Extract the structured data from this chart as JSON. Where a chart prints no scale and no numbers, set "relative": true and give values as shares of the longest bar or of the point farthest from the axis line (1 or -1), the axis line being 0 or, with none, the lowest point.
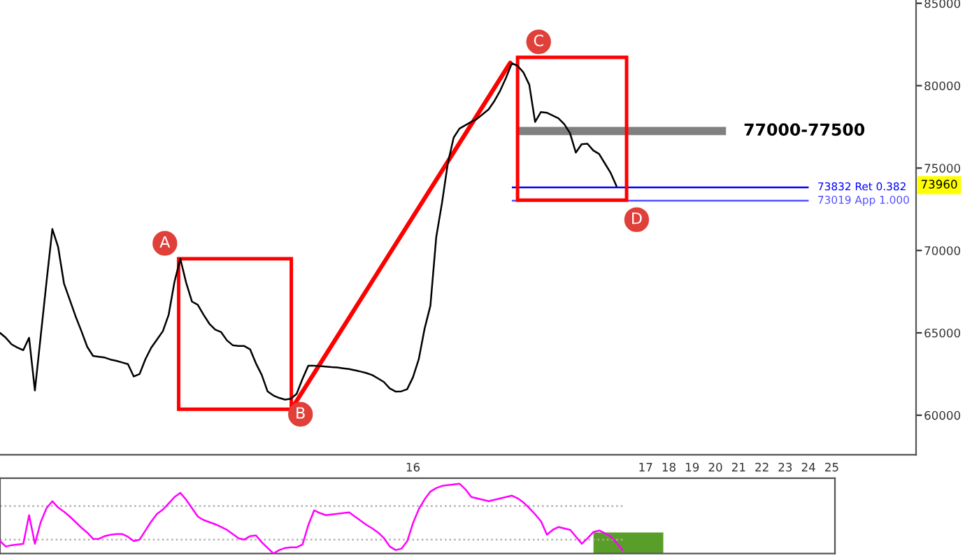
{
  "chart_data": [
    {
      "type": "line",
      "ylim": [
        57600,
        85200
      ],
      "yticks": [
        60000,
        65000,
        70000,
        75000,
        80000,
        85000
      ],
      "categories": [
        null,
        null,
        null,
        null,
        null,
        null,
        null,
        null,
        null,
        null,
        null,
        null,
        null,
        null,
        null,
        null,
        null,
        null,
        null,
        null,
        null,
        null,
        null,
        null,
        null,
        null,
        null,
        null,
        null,
        null,
        null,
        null,
        null,
        null,
        null,
        null,
        null,
        null,
        null,
        null,
        null,
        null,
        null,
        null,
        null,
        null,
        null,
        null,
        null,
        null,
        null,
        null,
        null,
        null,
        null,
        null,
        null,
        null,
        null,
        null,
        null,
        null,
        null,
        null,
        null,
        null,
        null,
        null,
        null,
        null,
        null,
        "16",
        null,
        null,
        null,
        null,
        null,
        null,
        null,
        null,
        null,
        null,
        null,
        null,
        null,
        null,
        null,
        null,
        null,
        null,
        null,
        null,
        null,
        null,
        null,
        null,
        null,
        null,
        null,
        null,
        null,
        null,
        null,
        null,
        null,
        null,
        null,
        null,
        null,
        null,
        null,
        "17",
        null,
        null,
        null,
        "18",
        null,
        null,
        null,
        "19",
        null,
        null,
        null,
        "20",
        null,
        null,
        null,
        "21",
        null,
        null,
        null,
        "22",
        null,
        null,
        null,
        "23",
        null,
        null,
        null,
        "24",
        null,
        null,
        null,
        "25",
        null,
        null,
        null,
        null,
        null,
        null,
        null,
        null,
        null,
        null,
        null,
        null,
        null,
        null
      ],
      "grid": false,
      "legend": false,
      "marker": "none",
      "series": [
        {
          "color": "#000000",
          "values": [
            65000,
            64700,
            64300,
            64100,
            63950,
            64700,
            61500,
            64800,
            68100,
            71300,
            70200,
            68000,
            67000,
            66000,
            65100,
            64150,
            63600,
            63550,
            63500,
            63380,
            63300,
            63200,
            63100,
            62350,
            62500,
            63400,
            64100,
            64600,
            65100,
            66100,
            68100,
            69500,
            68050,
            66900,
            66700,
            66100,
            65550,
            65200,
            65050,
            64550,
            64250,
            64200,
            64200,
            64000,
            63150,
            62450,
            61450,
            61200,
            61050,
            60950,
            61000,
            61300,
            62200,
            63000,
            63000,
            62980,
            62950,
            62920,
            62900,
            62850,
            62800,
            62730,
            62650,
            62560,
            62440,
            62230,
            62020,
            61630,
            61440,
            61450,
            61580,
            62300,
            63400,
            65250,
            66650,
            70800,
            72900,
            75300,
            76850,
            77400,
            77600,
            77800,
            77980,
            78270,
            78560,
            79070,
            79700,
            80480,
            81360,
            81200,
            80800,
            80060,
            77800,
            78400,
            78360,
            78190,
            78020,
            77670,
            77120,
            75940,
            76450,
            76480,
            76070,
            75860,
            75280,
            74700,
            73900,
            null,
            null,
            null,
            null,
            null,
            null,
            null,
            null,
            null,
            null,
            null,
            null,
            null,
            null,
            null,
            null,
            null,
            null,
            null,
            null,
            null,
            null,
            null,
            null,
            null,
            null,
            null,
            null,
            null,
            null,
            null,
            null,
            null,
            null,
            null,
            null,
            null,
            null,
            null,
            null,
            null,
            null,
            null,
            null,
            null,
            null,
            null,
            null,
            null,
            null,
            null
          ]
        }
      ],
      "bands": [
        {
          "axis": "y",
          "from": 77000,
          "to": 77500,
          "label": "77000-77500",
          "color": "#808080"
        }
      ],
      "ref_lines": [
        {
          "axis": "y",
          "value": 73832,
          "label": "73832 Ret 0.382",
          "color": "#0000ff"
        },
        {
          "axis": "y",
          "value": 73019,
          "label": "73019 App 1.000",
          "color": "#5050ff"
        }
      ],
      "annotations": [
        "A",
        "B",
        "C",
        "D",
        {
          "text": "73960",
          "y": 73960
        }
      ]
    },
    {
      "type": "line",
      "relative": true,
      "legend": false,
      "grid": false,
      "marker": "none",
      "categories": [
        null,
        null,
        null,
        null,
        null,
        null,
        null,
        null,
        null,
        null,
        null,
        null,
        null,
        null,
        null,
        null,
        null,
        null,
        null,
        null,
        null,
        null,
        null,
        null,
        null,
        null,
        null,
        null,
        null,
        null,
        null,
        null,
        null,
        null,
        null,
        null,
        null,
        null,
        null,
        null,
        null,
        null,
        null,
        null,
        null,
        null,
        null,
        null,
        null,
        null,
        null,
        null,
        null,
        null,
        null,
        null,
        null,
        null,
        null,
        null,
        null,
        null,
        null,
        null,
        null,
        null,
        null,
        null,
        null,
        null,
        null,
        null,
        null,
        null,
        null,
        null,
        null,
        null,
        null,
        null,
        null,
        null,
        null,
        null,
        null,
        null,
        null,
        null,
        null,
        null,
        null,
        null,
        null,
        null,
        null,
        null,
        null,
        null,
        null,
        null,
        null,
        null,
        null,
        null,
        null,
        null,
        null,
        null,
        null,
        null,
        null,
        null,
        null,
        null,
        null,
        null,
        null,
        null,
        null,
        null,
        null,
        null,
        null,
        null,
        null,
        null,
        null,
        null,
        null,
        null,
        null,
        null,
        null,
        null,
        null,
        null,
        null,
        null,
        null,
        null,
        null,
        null,
        null,
        null
      ],
      "series": [
        {
          "color": "#ff00ff",
          "values": [
            0.18,
            0.1,
            0.12,
            0.13,
            0.14,
            0.55,
            0.14,
            0.45,
            0.65,
            0.75,
            0.66,
            0.6,
            0.53,
            0.45,
            0.37,
            0.3,
            0.21,
            0.21,
            0.25,
            0.27,
            0.28,
            0.28,
            0.24,
            0.18,
            0.2,
            0.33,
            0.46,
            0.57,
            0.63,
            0.72,
            0.81,
            0.87,
            0.77,
            0.65,
            0.53,
            0.48,
            0.45,
            0.42,
            0.38,
            0.34,
            0.28,
            0.22,
            0.2,
            0.25,
            0.26,
            0.16,
            0.08,
            0,
            0.05,
            0.08,
            0.09,
            0.09,
            0.13,
            0.41,
            0.62,
            0.58,
            0.55,
            0.56,
            0.57,
            0.58,
            0.59,
            0.53,
            0.47,
            0.41,
            0.36,
            0.3,
            0.22,
            0.1,
            0.05,
            0.07,
            0.18,
            0.44,
            0.64,
            0.78,
            0.89,
            0.94,
            0.97,
            0.98,
            0.99,
            1.0,
            0.92,
            0.81,
            0.79,
            0.77,
            0.75,
            0.77,
            0.79,
            0.81,
            0.83,
            0.79,
            0.73,
            0.65,
            0.56,
            0.46,
            0.27,
            0.34,
            0.38,
            0.36,
            0.34,
            0.24,
            0.14,
            0.22,
            0.31,
            0.33,
            0.29,
            0.24,
            0.15,
            0.05,
            null,
            null,
            null,
            null,
            null,
            null,
            null,
            null,
            null,
            null,
            null,
            null,
            null,
            null,
            null,
            null,
            null,
            null,
            null,
            null,
            null,
            null,
            null,
            null,
            null,
            null,
            null,
            null,
            null,
            null,
            null,
            null,
            null,
            null,
            null,
            null
          ]
        }
      ],
      "ref_lines": [
        {
          "axis": "y",
          "value": 0.68,
          "color": "#b0b0b0",
          "line_style": "dotted"
        },
        {
          "axis": "y",
          "value": 0.2,
          "color": "#b0b0b0",
          "line_style": "dotted"
        }
      ]
    }
  ]
}
